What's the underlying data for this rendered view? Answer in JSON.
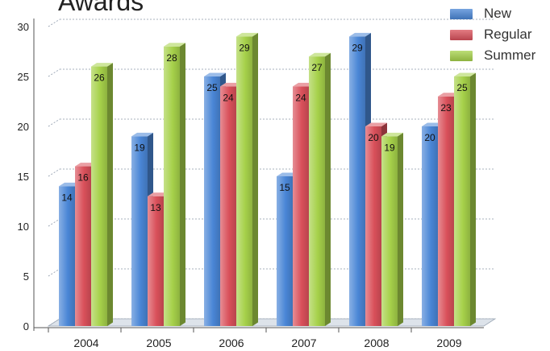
{
  "chart_data": {
    "type": "bar",
    "title": "Awards",
    "xlabel": "",
    "ylabel": "",
    "categories": [
      "2004",
      "2005",
      "2006",
      "2007",
      "2008",
      "2009"
    ],
    "series": [
      {
        "name": "New",
        "values": [
          14,
          19,
          25,
          15,
          29,
          20
        ],
        "color": "#4a86d6"
      },
      {
        "name": "Regular",
        "values": [
          16,
          13,
          24,
          24,
          20,
          23
        ],
        "color": "#d9505a"
      },
      {
        "name": "Summer",
        "values": [
          26,
          28,
          29,
          27,
          19,
          25
        ],
        "color": "#a6d14a"
      }
    ],
    "ylim": [
      0,
      30
    ],
    "yticks": [
      0,
      5,
      10,
      15,
      20,
      25,
      30
    ],
    "grid": true,
    "legend": "top-right",
    "data_labels": true
  }
}
